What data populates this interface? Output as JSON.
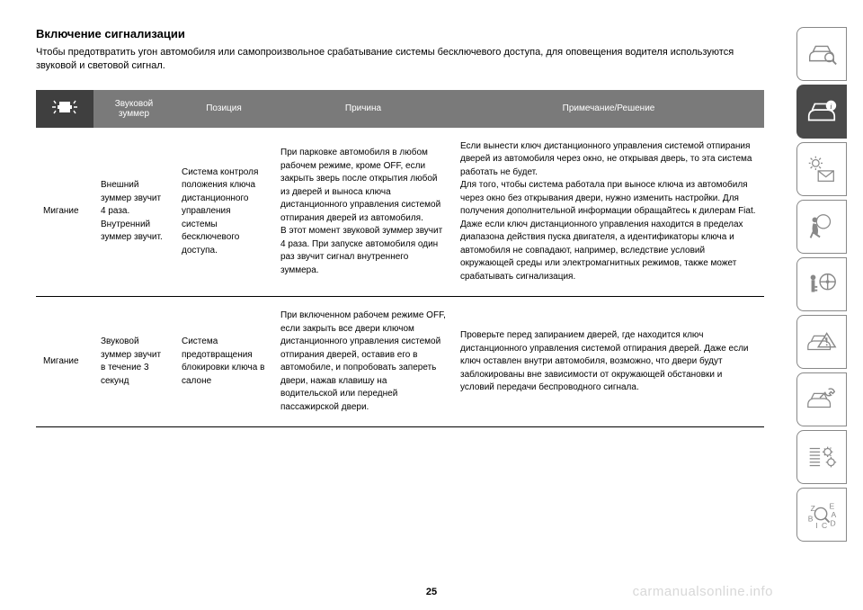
{
  "heading": "Включение сигнализации",
  "intro": "Чтобы предотвратить угон автомобиля или самопроизвольное срабатывание системы бесключевого доступа, для оповещения водителя используются звуковой и световой сигнал.",
  "table": {
    "headers": {
      "buzzer": "Звуковой зуммер",
      "position": "Позиция",
      "reason": "Причина",
      "note": "Примечание/Решение"
    },
    "rows": [
      {
        "indicator": "Мигание",
        "buzzer": "Внешний зуммер звучит 4 раза. Внутренний зуммер звучит.",
        "position": "Система контроля положения ключа дистанционного управления системы бесключевого доступа.",
        "reason": "При парковке автомобиля в любом рабочем режиме, кроме OFF, если закрыть зверь после открытия любой из дверей и выноса ключа дистанционного управления системой отпирания дверей из автомобиля.\nВ этот момент звуковой зуммер звучит 4 раза. При запуске автомобиля один раз звучит сигнал внутреннего зуммера.",
        "note": "Если вынести ключ дистанционного управления системой отпирания дверей из автомобиля через окно, не открывая дверь, то эта система работать не будет.\nДля того, чтобы система работала при выносе ключа из автомобиля через окно без открывания двери, нужно изменить настройки. Для получения дополнительной информации обращайтесь к дилерам Fiat.\nДаже если ключ дистанционного управления находится в пределах диапазона действия пуска двигателя, а идентификаторы ключа и автомобиля не совпадают, например, вследствие условий окружающей среды или электромагнитных режимов, также может срабатывать сигнализация."
      },
      {
        "indicator": "Мигание",
        "buzzer": "Звуковой зуммер звучит в течение 3 секунд",
        "position": "Система предотвращения блокировки ключа в салоне",
        "reason": "При включенном рабочем режиме OFF, если закрыть все двери ключом дистанционного управления системой отпирания дверей, оставив его в автомобиле, и попробовать запереть двери, нажав клавишу на водительской или передней пассажирской двери.",
        "note": "Проверьте перед запиранием дверей, где находится ключ дистанционного управления системой отпирания дверей. Даже если ключ оставлен внутри автомобиля, возможно, что двери будут заблокированы вне зависимости от окружающей обстановки и условий передачи беспроводного сигнала."
      }
    ]
  },
  "pageNumber": "25",
  "watermark": "carmanualsonline.info"
}
